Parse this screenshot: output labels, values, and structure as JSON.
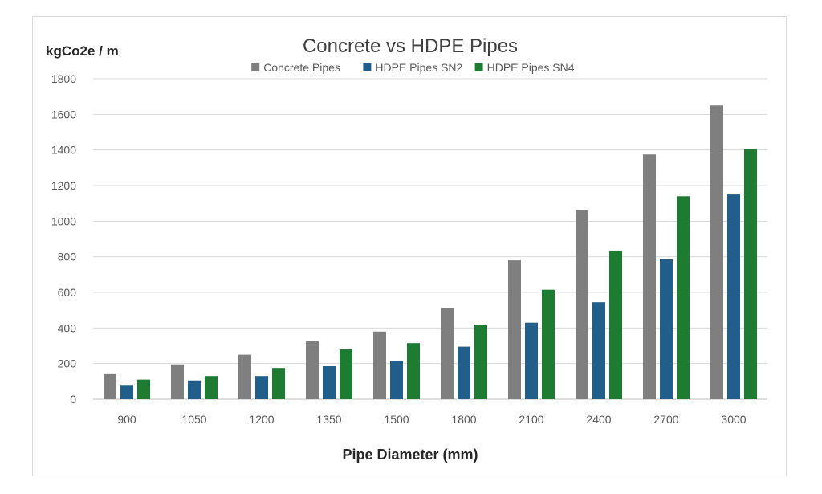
{
  "chart_data": {
    "type": "bar",
    "title": "Concrete vs HDPE Pipes",
    "ylabel": "kgCo2e / m",
    "xlabel": "Pipe Diameter (mm)",
    "categories": [
      "900",
      "1050",
      "1200",
      "1350",
      "1500",
      "1800",
      "2100",
      "2400",
      "2700",
      "3000"
    ],
    "series": [
      {
        "name": "Concrete Pipes",
        "color": "#7f7f7f",
        "values": [
          145,
          195,
          250,
          325,
          380,
          510,
          780,
          1060,
          1375,
          1650
        ]
      },
      {
        "name": "HDPE Pipes SN2",
        "color": "#215f8a",
        "values": [
          80,
          105,
          130,
          185,
          215,
          295,
          430,
          545,
          785,
          1150
        ]
      },
      {
        "name": "HDPE Pipes SN4",
        "color": "#1e7b32",
        "values": [
          110,
          130,
          175,
          280,
          315,
          415,
          615,
          835,
          1140,
          1405
        ]
      }
    ],
    "ylim": [
      0,
      1800
    ],
    "yticks": [
      "0",
      "200",
      "400",
      "600",
      "800",
      "1000",
      "1200",
      "1400",
      "1600",
      "1800"
    ],
    "grid": true,
    "legend_position": "top"
  }
}
